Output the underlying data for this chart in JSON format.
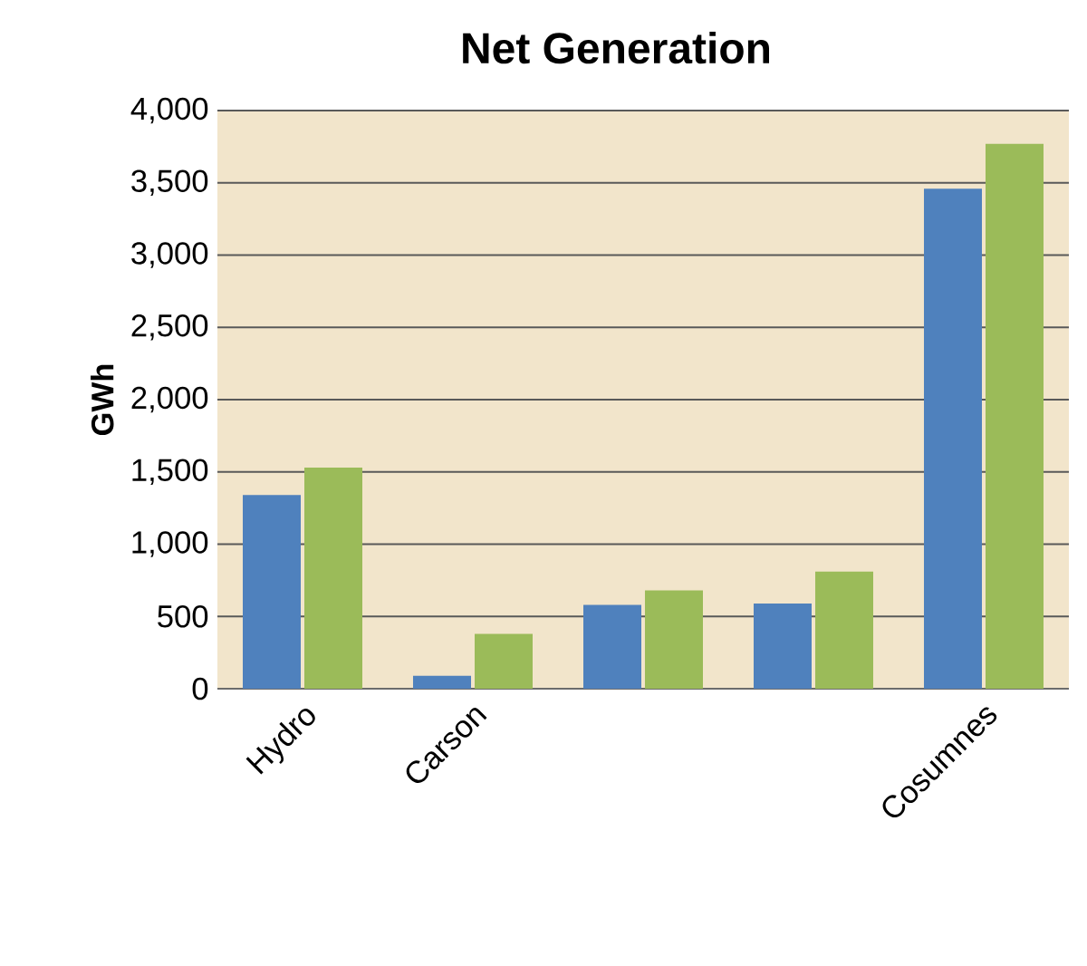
{
  "chart_data": {
    "type": "bar",
    "title": "Net Generation",
    "ylabel": "GWh",
    "categories": [
      "Hydro",
      "Carson",
      null,
      null,
      "Cosumnes"
    ],
    "series": [
      {
        "color": "#4f81bd",
        "values": [
          1340,
          90,
          580,
          590,
          3460
        ]
      },
      {
        "color": "#9bbb59",
        "values": [
          1530,
          380,
          680,
          810,
          3770
        ]
      }
    ],
    "ylim": [
      0,
      4000
    ],
    "yticks": [
      0,
      500,
      {
        "value": 1000,
        "label": "1,000"
      },
      {
        "value": 1500,
        "label": "1,500"
      },
      {
        "value": 2000,
        "label": "2,000"
      },
      {
        "value": 2500,
        "label": "2,500"
      },
      {
        "value": 3000,
        "label": "3,000"
      },
      {
        "value": 3500,
        "label": "3,500"
      },
      {
        "value": 4000,
        "label": "4,000"
      }
    ],
    "grid": "y"
  }
}
